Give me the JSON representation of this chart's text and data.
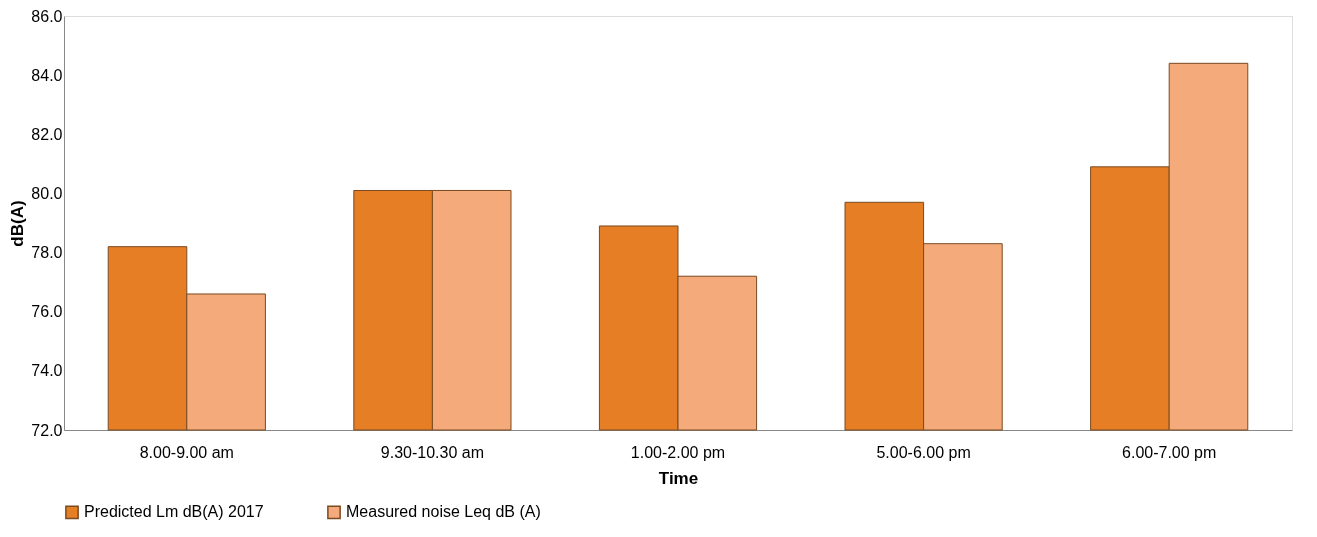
{
  "chart_data": {
    "type": "bar",
    "xlabel": "Time",
    "ylabel": "dB(A)",
    "categories": [
      "8.00-9.00 am",
      "9.30-10.30 am",
      "1.00-2.00 pm",
      "5.00-6.00 pm",
      "6.00-7.00 pm"
    ],
    "series": [
      {
        "name": "Predicted Lm dB(A) 2017",
        "color": "#e67e26",
        "values": [
          78.2,
          80.1,
          78.9,
          79.7,
          80.9
        ]
      },
      {
        "name": "Measured noise Leq dB (A)",
        "color": "#f4aa7a",
        "values": [
          76.6,
          80.1,
          77.2,
          78.3,
          84.4
        ]
      }
    ],
    "ylim": [
      72,
      86
    ],
    "yticks": [
      {
        "value": 72,
        "label": "72.0"
      },
      {
        "value": 74,
        "label": "74.0"
      },
      {
        "value": 76,
        "label": "76.0"
      },
      {
        "value": 78,
        "label": "78.0"
      },
      {
        "value": 80,
        "label": "80.0"
      },
      {
        "value": 82,
        "label": "82.0"
      },
      {
        "value": 84,
        "label": "84.0"
      },
      {
        "value": 86,
        "label": "86.0"
      }
    ],
    "grid": false,
    "legend": "bottom"
  }
}
